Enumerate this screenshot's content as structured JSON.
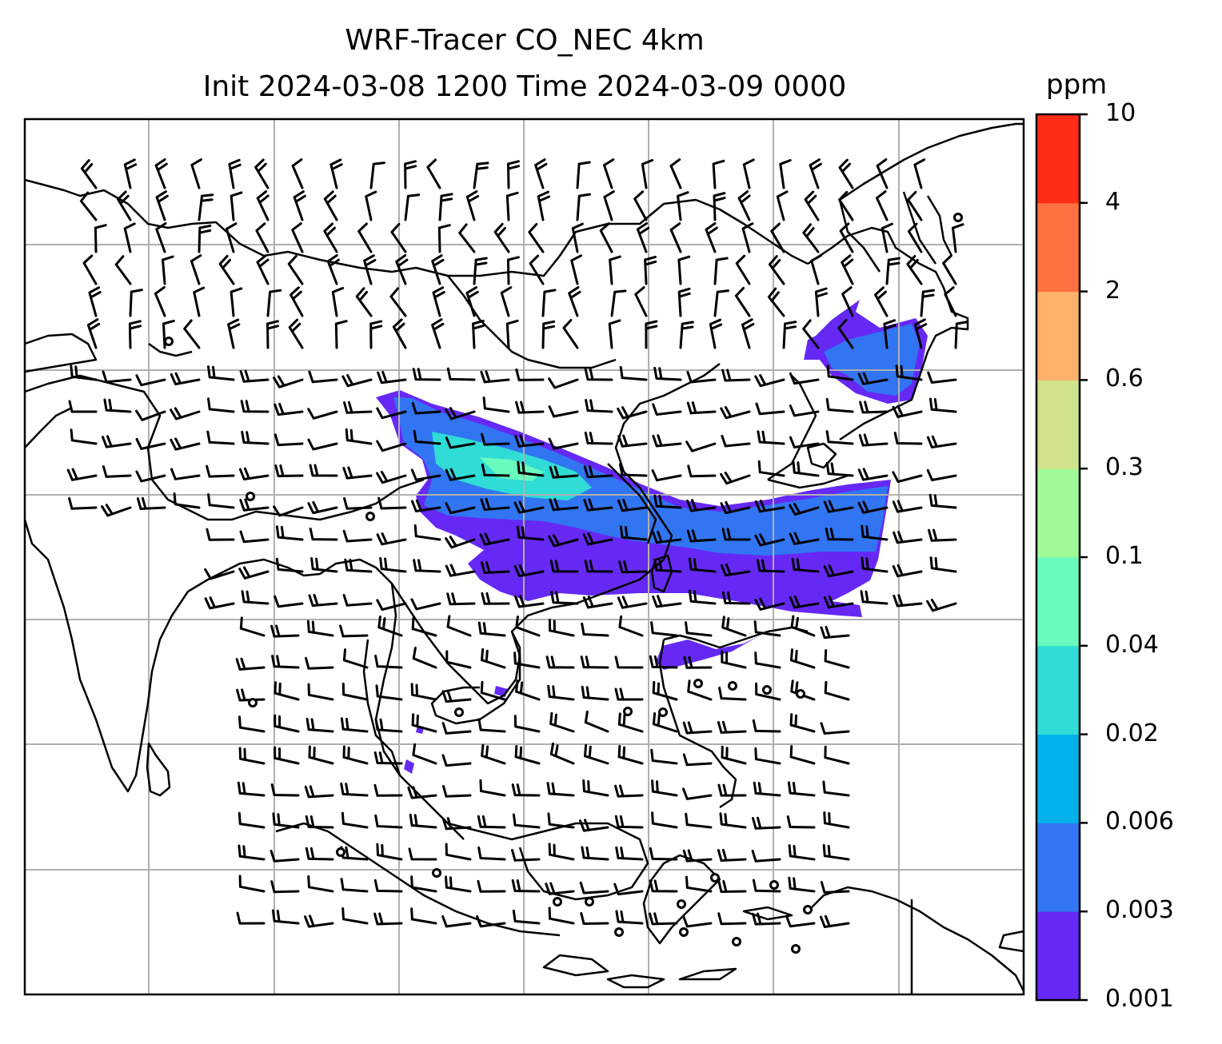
{
  "title": {
    "line1": "WRF-Tracer CO_NEC 4km",
    "line2": "Init 2024-03-08 1200 Time 2024-03-09 0000"
  },
  "colorbar": {
    "units": "ppm",
    "levels": [
      "0.001",
      "0.003",
      "0.006",
      "0.02",
      "0.04",
      "0.1",
      "0.3",
      "0.6",
      "2",
      "4",
      "10"
    ],
    "colors": [
      "#6629f5",
      "#3175f2",
      "#00b1ec",
      "#30dcd6",
      "#69fbbe",
      "#9ff997",
      "#cfe18a",
      "#fdb16a",
      "#ff7141",
      "#ff2c16"
    ]
  },
  "map": {
    "tracer_fill_colors": {
      "low": "#6629f5",
      "mid": "#3175f2",
      "high": "#30dcd6",
      "peak": "#69fbbe"
    },
    "coastline_color": "#000000",
    "gridline_color": "#b0b0b0"
  }
}
